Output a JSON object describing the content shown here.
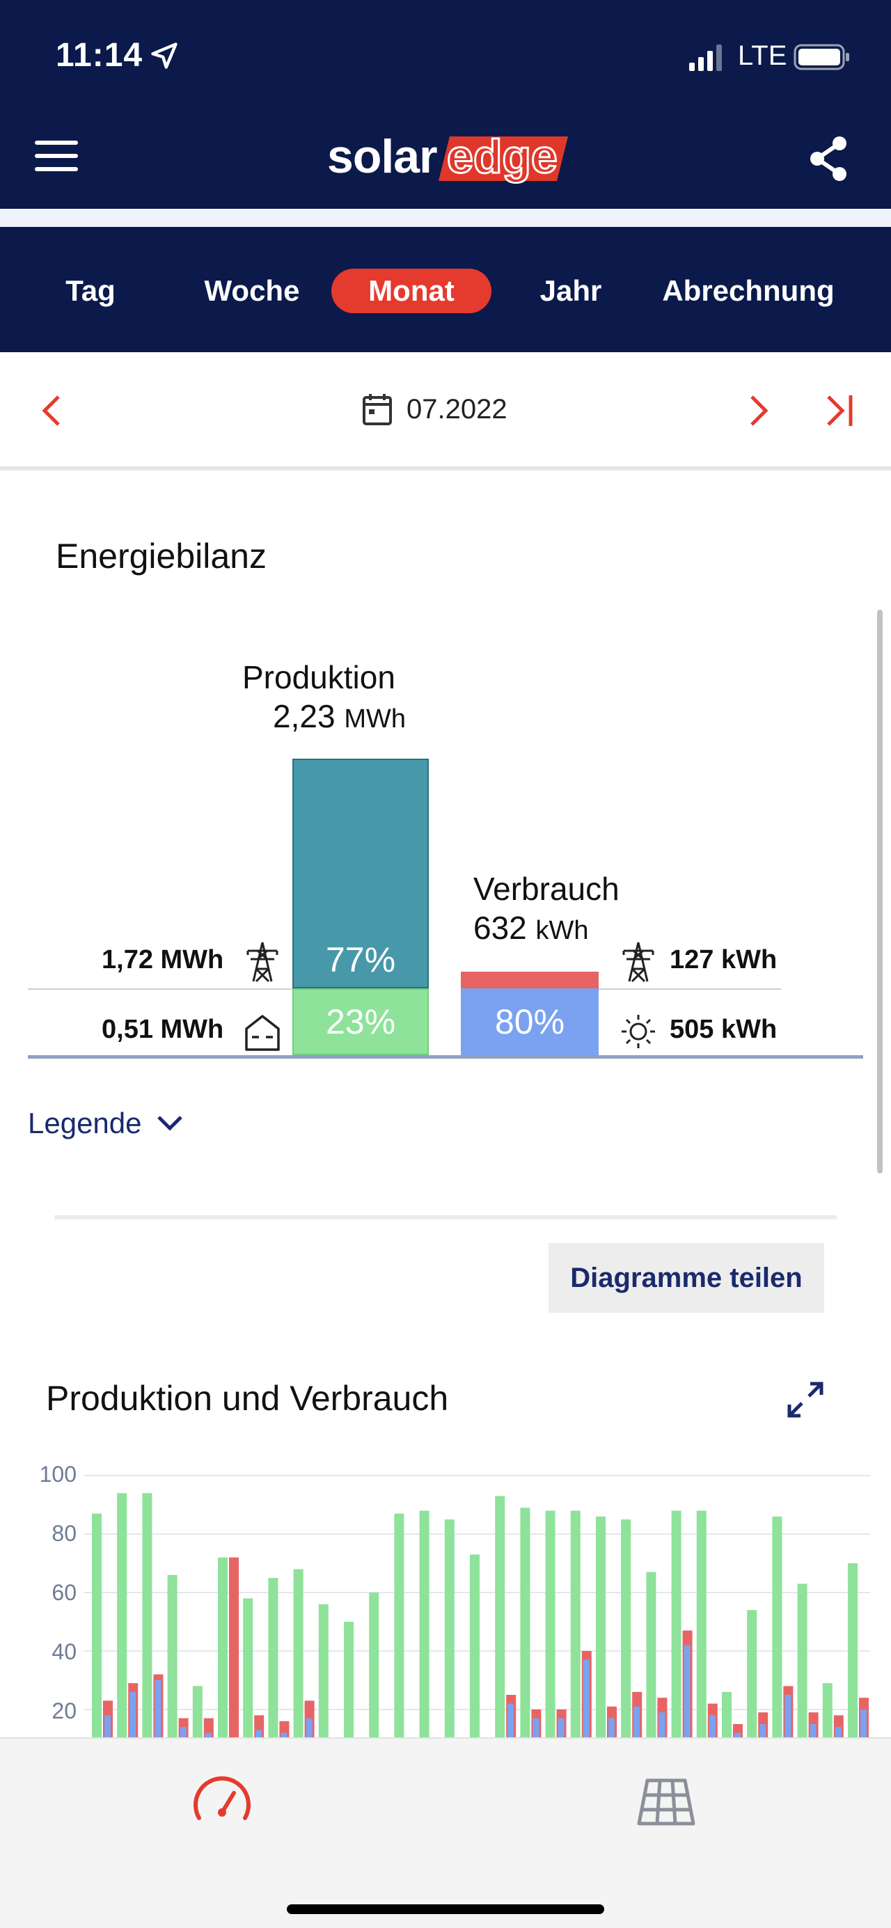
{
  "status_bar": {
    "time": "11:14",
    "network": "LTE"
  },
  "header": {
    "logo_solar": "solar",
    "logo_edge": "edge"
  },
  "tabs": [
    {
      "label": "Tag",
      "active": false
    },
    {
      "label": "Woche",
      "active": false
    },
    {
      "label": "Monat",
      "active": true
    },
    {
      "label": "Jahr",
      "active": false
    },
    {
      "label": "Abrechnung",
      "active": false
    }
  ],
  "date_nav": {
    "date": "07.2022"
  },
  "energy_balance": {
    "title": "Energiebilanz",
    "production": {
      "label": "Produktion",
      "value": "2,23",
      "unit": "MWh",
      "grid_value": "1,72 MWh",
      "grid_percent": "77%",
      "self_value": "0,51 MWh",
      "self_percent": "23%",
      "grid_fraction": 0.77,
      "self_fraction": 0.23
    },
    "consumption": {
      "label": "Verbrauch",
      "value": "632",
      "unit": "kWh",
      "grid_value": "127 kWh",
      "solar_value": "505 kWh",
      "solar_percent": "80%",
      "solar_fraction": 0.8
    },
    "legend_label": "Legende"
  },
  "share_button": "Diagramme teilen",
  "chart_title": "Produktion und Verbrauch",
  "colors": {
    "navy": "#0b1a4a",
    "accent_red": "#e53a2e",
    "production_teal": "#4799a9",
    "self_green": "#8ee29a",
    "consumption_blue": "#7aa2f0",
    "consumption_red": "#e86464"
  },
  "chart_data": {
    "type": "bar",
    "yticks": [
      "100",
      "80",
      "60",
      "40",
      "20"
    ],
    "ylim": [
      0,
      100
    ],
    "series": [
      {
        "values": [
          87,
          94,
          94,
          66,
          28,
          72,
          58,
          65,
          68,
          56,
          50,
          60,
          87,
          88,
          85,
          73,
          93,
          89,
          88,
          88,
          86,
          85,
          67,
          88,
          88,
          26,
          54,
          86,
          63,
          29,
          70
        ]
      },
      {
        "values": [
          23,
          29,
          32,
          17,
          17,
          72,
          18,
          16,
          23,
          0,
          0,
          0,
          0,
          0,
          0,
          0,
          25,
          20,
          20,
          40,
          21,
          26,
          24,
          47,
          22,
          15,
          19,
          28,
          19,
          18,
          24
        ]
      },
      {
        "values": [
          18,
          26,
          30,
          14,
          12,
          0,
          13,
          12,
          17,
          0,
          0,
          0,
          0,
          0,
          0,
          0,
          22,
          17,
          17,
          37,
          17,
          21,
          19,
          42,
          18,
          12,
          15,
          25,
          15,
          14,
          20
        ]
      }
    ]
  }
}
